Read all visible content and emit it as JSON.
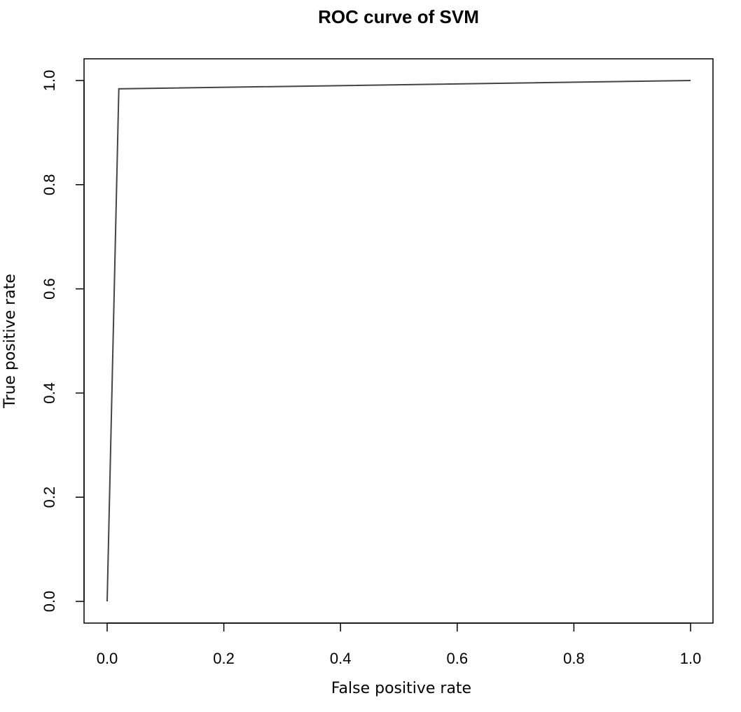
{
  "chart_data": {
    "type": "line",
    "title": "ROC curve of SVM",
    "xlabel": "False positive rate",
    "ylabel": "True positive rate",
    "xlim": [
      0.0,
      1.0
    ],
    "ylim": [
      0.0,
      1.0
    ],
    "x_ticks": [
      "0.0",
      "0.2",
      "0.4",
      "0.6",
      "0.8",
      "1.0"
    ],
    "y_ticks": [
      "0.0",
      "0.2",
      "0.4",
      "0.6",
      "0.8",
      "1.0"
    ],
    "grid": false,
    "legend": "none",
    "series": [
      {
        "x": [
          0.0,
          0.02,
          1.0
        ],
        "y": [
          0.0,
          0.984,
          1.0
        ],
        "color": "#444444"
      }
    ]
  }
}
